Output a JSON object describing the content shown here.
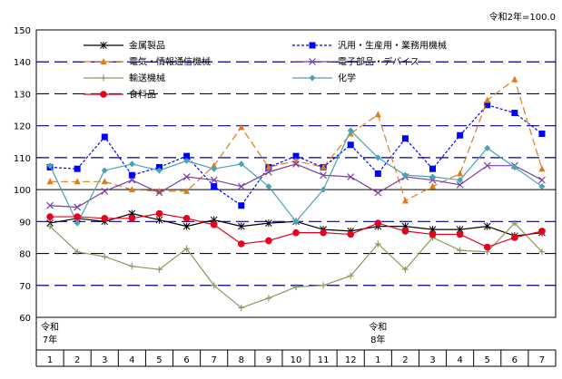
{
  "note": "令和2年=100.0",
  "chart_data": {
    "type": "line",
    "ylim": [
      60,
      150
    ],
    "yticks": [
      60,
      70,
      80,
      90,
      100,
      110,
      120,
      130,
      140,
      150
    ],
    "x": [
      "1",
      "2",
      "3",
      "4",
      "5",
      "6",
      "7",
      "8",
      "9",
      "10",
      "11",
      "12",
      "1",
      "2",
      "3",
      "4",
      "5",
      "6",
      "7"
    ],
    "era_labels": [
      {
        "index": 0,
        "line1": "令和",
        "line2": "7年"
      },
      {
        "index": 12,
        "line1": "令和",
        "line2": "8年"
      }
    ],
    "legend_placement": "top",
    "series": [
      {
        "name": "金属製品",
        "color": "#000000",
        "dash": "",
        "marker": "asterisk",
        "values": [
          89.5,
          91.0,
          90.0,
          92.5,
          90.5,
          88.5,
          90.5,
          88.5,
          89.5,
          90.0,
          87.5,
          87.0,
          88.5,
          88.5,
          87.5,
          87.5,
          88.5,
          85.5,
          86.5
        ]
      },
      {
        "name": "汎用・生産用・業務用機械",
        "color": "#0000ff",
        "dash": "3,2",
        "marker": "square",
        "values": [
          107.0,
          106.5,
          116.5,
          104.5,
          107.0,
          110.5,
          101.0,
          95.0,
          107.0,
          110.5,
          107.0,
          114.0,
          105.0,
          116.0,
          106.5,
          117.0,
          126.5,
          124.0,
          117.5
        ]
      },
      {
        "name": "電気・情報通信機械",
        "color": "#e07b1a",
        "dash": "8,4",
        "marker": "triangle",
        "values": [
          102.5,
          102.5,
          102.5,
          100.0,
          99.5,
          99.5,
          107.5,
          119.5,
          107.0,
          109.0,
          107.0,
          117.5,
          123.5,
          96.5,
          101.0,
          105.0,
          128.0,
          134.5,
          106.5
        ]
      },
      {
        "name": "電子部品・デバイス",
        "color": "#7a3fa6",
        "dash": "",
        "marker": "x",
        "values": [
          95.0,
          94.5,
          99.5,
          103.0,
          99.0,
          104.0,
          103.0,
          101.0,
          105.5,
          108.0,
          104.5,
          104.0,
          99.0,
          104.0,
          103.0,
          101.5,
          107.5,
          107.5,
          103.0
        ]
      },
      {
        "name": "輸送機械",
        "color": "#8a9a5b",
        "dash": "",
        "marker": "plus",
        "values": [
          88.5,
          80.5,
          79.0,
          76.0,
          75.0,
          81.5,
          70.0,
          63.0,
          66.0,
          69.5,
          70.0,
          73.0,
          83.0,
          75.0,
          85.0,
          81.0,
          80.5,
          89.5,
          80.5
        ]
      },
      {
        "name": "化学",
        "color": "#4aa3b5",
        "dash": "",
        "marker": "diamond",
        "values": [
          107.5,
          89.5,
          106.0,
          108.0,
          106.0,
          109.0,
          106.5,
          108.0,
          101.0,
          90.0,
          100.0,
          118.5,
          110.0,
          104.5,
          104.0,
          103.0,
          113.0,
          107.0,
          101.0
        ]
      },
      {
        "name": "食料品",
        "color": "#e8001c",
        "dash": "",
        "marker": "circle",
        "values": [
          91.5,
          91.5,
          91.0,
          91.0,
          92.5,
          91.0,
          89.0,
          83.0,
          84.0,
          86.5,
          86.5,
          86.0,
          89.5,
          87.0,
          86.0,
          86.0,
          82.0,
          85.0,
          87.0
        ]
      }
    ]
  }
}
